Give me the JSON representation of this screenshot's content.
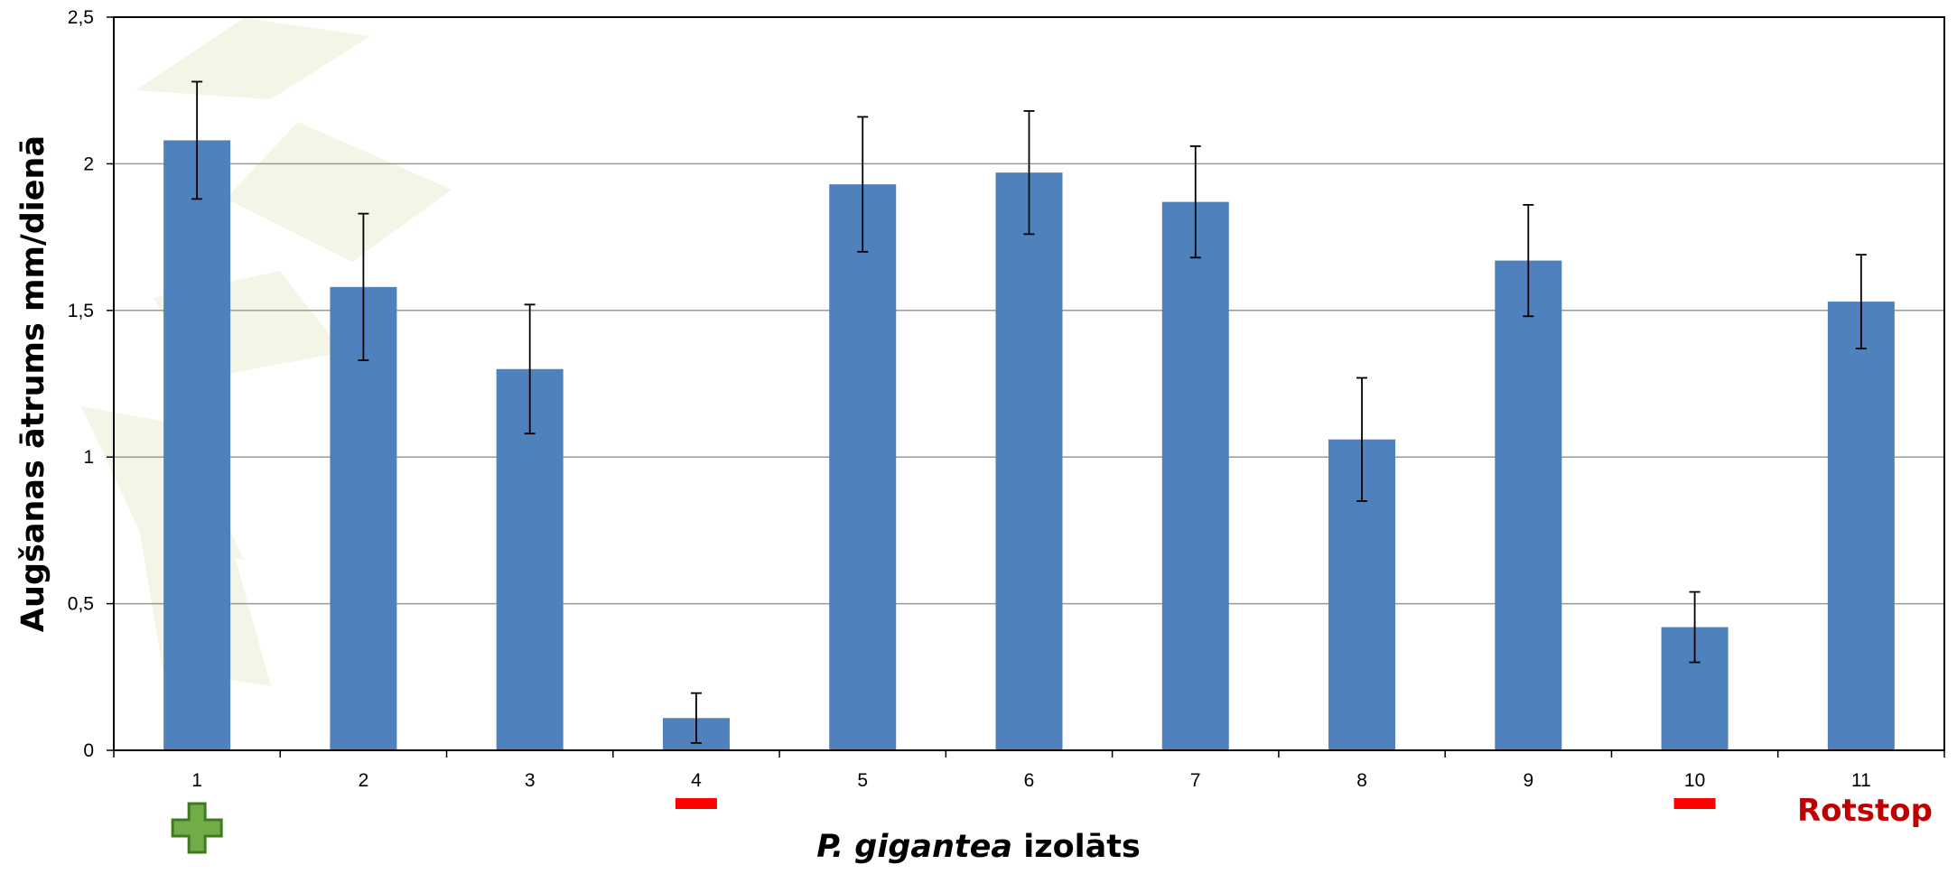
{
  "chart_data": {
    "type": "bar",
    "categories": [
      "1",
      "2",
      "3",
      "4",
      "5",
      "6",
      "7",
      "8",
      "9",
      "10",
      "11"
    ],
    "values": [
      2.08,
      1.58,
      1.3,
      0.11,
      1.93,
      1.97,
      1.87,
      1.06,
      1.67,
      0.42,
      1.53
    ],
    "errors": [
      0.2,
      0.25,
      0.22,
      0.085,
      0.23,
      0.21,
      0.19,
      0.21,
      0.19,
      0.12,
      0.16
    ],
    "ylim": [
      0,
      2.5
    ],
    "yticks": [
      "0",
      "0,5",
      "1",
      "1,5",
      "2",
      "2,5"
    ],
    "ylabel": "Augšanas ātrums mm/dienā",
    "xlabel_italic": "P. gigantea",
    "xlabel_rest": " izolāts",
    "grid": true,
    "bar_color": "#4f81bd",
    "markers": [
      {
        "category": "1",
        "symbol": "plus",
        "color": "#70ad47"
      },
      {
        "category": "4",
        "symbol": "minus",
        "color": "#ff0000"
      },
      {
        "category": "10",
        "symbol": "minus",
        "color": "#ff0000"
      }
    ],
    "annotation": {
      "text": "Rotstop",
      "color": "#c00000"
    }
  }
}
